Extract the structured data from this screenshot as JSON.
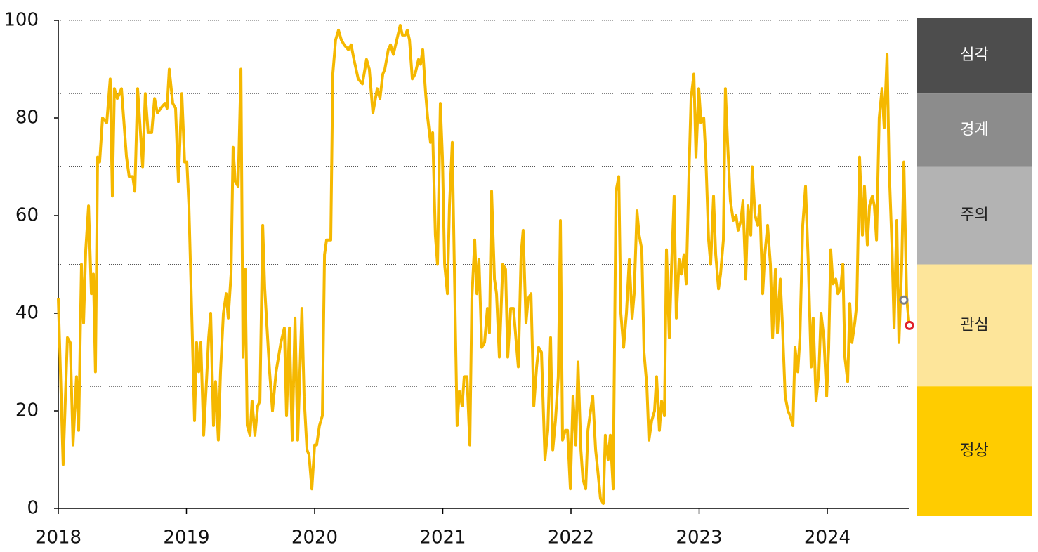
{
  "chart_data": {
    "type": "line",
    "xlim": [
      2018,
      2024.641
    ],
    "ylim": [
      0,
      100
    ],
    "xticks": [
      2018,
      2019,
      2020,
      2021,
      2022,
      2023,
      2024
    ],
    "yticks": [
      0,
      20,
      40,
      60,
      80,
      100
    ],
    "reference_lines": [
      100,
      85,
      70,
      50,
      25
    ],
    "series": [
      {
        "color": "#f5b800",
        "x": [
          2018.0,
          2018.038,
          2018.071,
          2018.093,
          2018.115,
          2018.142,
          2018.159,
          2018.181,
          2018.197,
          2018.214,
          2018.236,
          2018.258,
          2018.274,
          2018.29,
          2018.307,
          2018.323,
          2018.345,
          2018.378,
          2018.405,
          2018.422,
          2018.438,
          2018.46,
          2018.493,
          2018.532,
          2018.553,
          2018.581,
          2018.597,
          2018.619,
          2018.658,
          2018.679,
          2018.701,
          2018.729,
          2018.751,
          2018.773,
          2018.8,
          2018.833,
          2018.849,
          2018.866,
          2018.893,
          2018.915,
          2018.937,
          2018.964,
          2018.986,
          2019.003,
          2019.019,
          2019.041,
          2019.063,
          2019.079,
          2019.096,
          2019.112,
          2019.134,
          2019.156,
          2019.173,
          2019.189,
          2019.211,
          2019.227,
          2019.249,
          2019.266,
          2019.288,
          2019.31,
          2019.326,
          2019.348,
          2019.364,
          2019.381,
          2019.403,
          2019.425,
          2019.441,
          2019.458,
          2019.474,
          2019.496,
          2019.512,
          2019.534,
          2019.556,
          2019.573,
          2019.595,
          2019.611,
          2019.649,
          2019.671,
          2019.699,
          2019.737,
          2019.764,
          2019.781,
          2019.803,
          2019.825,
          2019.847,
          2019.868,
          2019.901,
          2019.918,
          2019.94,
          2019.956,
          2019.978,
          2020.0,
          2020.016,
          2020.038,
          2020.06,
          2020.077,
          2020.093,
          2020.126,
          2020.142,
          2020.164,
          2020.186,
          2020.208,
          2020.23,
          2020.263,
          2020.285,
          2020.307,
          2020.34,
          2020.373,
          2020.405,
          2020.427,
          2020.455,
          2020.488,
          2020.51,
          2020.532,
          2020.548,
          2020.575,
          2020.592,
          2020.614,
          2020.641,
          2020.668,
          2020.685,
          2020.707,
          2020.723,
          2020.74,
          2020.762,
          2020.784,
          2020.811,
          2020.827,
          2020.844,
          2020.866,
          2020.882,
          2020.904,
          2020.921,
          2020.942,
          2020.959,
          2020.981,
          2020.997,
          2021.014,
          2021.036,
          2021.052,
          2021.074,
          2021.09,
          2021.112,
          2021.129,
          2021.151,
          2021.167,
          2021.189,
          2021.211,
          2021.227,
          2021.249,
          2021.266,
          2021.282,
          2021.304,
          2021.326,
          2021.348,
          2021.364,
          2021.381,
          2021.403,
          2021.419,
          2021.441,
          2021.468,
          2021.49,
          2021.507,
          2021.529,
          2021.551,
          2021.573,
          2021.589,
          2021.611,
          2021.627,
          2021.649,
          2021.666,
          2021.688,
          2021.71,
          2021.732,
          2021.748,
          2021.77,
          2021.797,
          2021.819,
          2021.841,
          2021.858,
          2021.879,
          2021.901,
          2021.918,
          2021.934,
          2021.956,
          2021.973,
          2021.995,
          2022.016,
          2022.038,
          2022.055,
          2022.077,
          2022.093,
          2022.115,
          2022.132,
          2022.153,
          2022.17,
          2022.192,
          2022.208,
          2022.23,
          2022.252,
          2022.268,
          2022.29,
          2022.307,
          2022.329,
          2022.351,
          2022.373,
          2022.389,
          2022.411,
          2022.433,
          2022.455,
          2022.477,
          2022.493,
          2022.515,
          2022.532,
          2022.553,
          2022.57,
          2022.592,
          2022.608,
          2022.63,
          2022.652,
          2022.668,
          2022.69,
          2022.707,
          2022.729,
          2022.745,
          2022.767,
          2022.784,
          2022.805,
          2022.822,
          2022.844,
          2022.86,
          2022.882,
          2022.899,
          2022.921,
          2022.937,
          2022.959,
          2022.975,
          2022.997,
          2023.014,
          2023.036,
          2023.052,
          2023.074,
          2023.09,
          2023.112,
          2023.129,
          2023.151,
          2023.167,
          2023.189,
          2023.205,
          2023.222,
          2023.244,
          2023.266,
          2023.288,
          2023.304,
          2023.326,
          2023.342,
          2023.364,
          2023.381,
          2023.403,
          2023.414,
          2023.436,
          2023.458,
          2023.474,
          2023.496,
          2023.512,
          2023.534,
          2023.556,
          2023.573,
          2023.595,
          2023.611,
          2023.633,
          2023.649,
          2023.671,
          2023.693,
          2023.71,
          2023.732,
          2023.748,
          2023.77,
          2023.786,
          2023.808,
          2023.83,
          2023.852,
          2023.874,
          2023.89,
          2023.912,
          2023.934,
          2023.951,
          2023.973,
          2023.995,
          2024.011,
          2024.027,
          2024.044,
          2024.066,
          2024.082,
          2024.104,
          2024.121,
          2024.137,
          2024.159,
          2024.175,
          2024.192,
          2024.214,
          2024.23,
          2024.252,
          2024.274,
          2024.29,
          2024.312,
          2024.329,
          2024.351,
          2024.367,
          2024.384,
          2024.405,
          2024.427,
          2024.444,
          2024.466,
          2024.482,
          2024.504,
          2024.521,
          2024.542,
          2024.559,
          2024.581,
          2024.597,
          2024.619,
          2024.641
        ],
        "values": [
          43,
          9,
          35,
          34,
          13,
          27,
          16,
          50,
          38,
          53,
          62,
          44,
          48,
          28,
          72,
          71,
          80,
          79,
          88,
          64,
          86,
          84,
          86,
          72,
          68,
          68,
          65,
          86,
          70,
          85,
          77,
          77,
          84,
          81,
          82,
          83,
          82,
          90,
          83,
          82,
          67,
          85,
          71,
          71,
          62,
          40,
          18,
          34,
          28,
          34,
          15,
          26,
          35,
          40,
          17,
          26,
          14,
          28,
          40,
          44,
          39,
          48,
          74,
          67,
          66,
          90,
          31,
          49,
          17,
          15,
          22,
          15,
          21,
          22,
          58,
          45,
          28,
          20,
          28,
          34,
          37,
          19,
          37,
          14,
          39,
          14,
          41,
          23,
          12,
          11,
          4,
          13,
          13,
          17,
          19,
          52,
          55,
          55,
          89,
          96,
          98,
          96,
          95,
          94,
          95,
          92,
          88,
          87,
          92,
          90,
          81,
          86,
          84,
          89,
          90,
          94,
          95,
          93,
          96,
          99,
          97,
          97,
          98,
          96,
          88,
          89,
          92,
          91,
          94,
          85,
          80,
          75,
          77,
          56,
          50,
          83,
          72,
          50,
          44,
          62,
          75,
          50,
          17,
          24,
          21,
          27,
          27,
          13,
          43,
          55,
          44,
          51,
          33,
          34,
          41,
          36,
          65,
          47,
          44,
          31,
          50,
          49,
          31,
          41,
          41,
          34,
          29,
          52,
          57,
          38,
          43,
          44,
          21,
          29,
          33,
          32,
          10,
          16,
          35,
          12,
          18,
          27,
          59,
          14,
          16,
          16,
          4,
          23,
          13,
          30,
          12,
          6,
          4,
          16,
          20,
          23,
          12,
          8,
          2,
          1,
          15,
          10,
          15,
          4,
          65,
          68,
          40,
          33,
          40,
          51,
          39,
          44,
          61,
          56,
          53,
          32,
          25,
          14,
          18,
          20,
          27,
          16,
          22,
          19,
          53,
          35,
          49,
          64,
          39,
          51,
          48,
          52,
          46,
          69,
          84,
          89,
          72,
          86,
          79,
          80,
          72,
          55,
          50,
          64,
          52,
          45,
          48,
          55,
          86,
          75,
          63,
          59,
          60,
          57,
          59,
          63,
          47,
          62,
          56,
          70,
          60,
          58,
          62,
          44,
          52,
          58,
          50,
          35,
          49,
          36,
          47,
          38,
          23,
          20,
          19,
          17,
          33,
          28,
          35,
          58,
          66,
          50,
          29,
          39,
          22,
          28,
          40,
          35,
          23,
          33,
          53,
          46,
          47,
          44,
          45,
          50,
          31,
          26,
          42,
          34,
          38,
          42,
          72,
          56,
          66,
          54,
          62,
          64,
          62,
          55,
          80,
          86,
          78,
          93,
          70,
          54,
          37,
          59,
          34,
          50,
          71,
          43,
          37
        ]
      }
    ],
    "markers": [
      {
        "x": 2024.597,
        "value": 42.7,
        "color": "#808080"
      },
      {
        "x": 2024.641,
        "value": 37.5,
        "color": "#e0202a"
      }
    ],
    "levels": [
      {
        "label": "심각",
        "from": 85,
        "to": 100,
        "color": "#4d4d4d",
        "text_color": "#ffffff"
      },
      {
        "label": "경계",
        "from": 70,
        "to": 85,
        "color": "#8c8c8c",
        "text_color": "#ffffff"
      },
      {
        "label": "주의",
        "from": 50,
        "to": 70,
        "color": "#b3b3b3",
        "text_color": "#222222"
      },
      {
        "label": "관심",
        "from": 25,
        "to": 50,
        "color": "#fde59a",
        "text_color": "#222222"
      },
      {
        "label": "정상",
        "from": 0,
        "to": 25,
        "color": "#ffcc00",
        "text_color": "#222222"
      }
    ]
  }
}
